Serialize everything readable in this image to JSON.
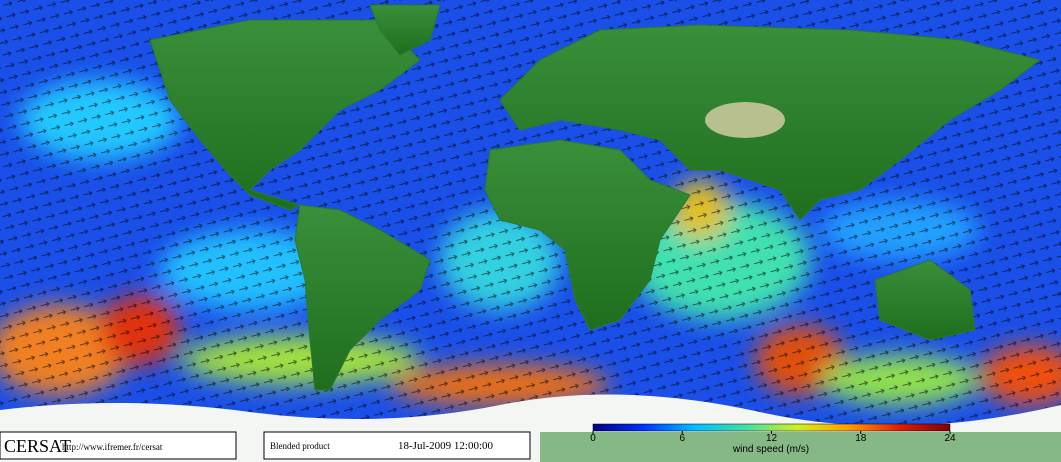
{
  "footer": {
    "logo": "CERSAT",
    "url": "http://www.ifremer.fr/cersat",
    "product": "Blended product",
    "datetime": "18-Jul-2009 12:00:00"
  },
  "colorbar": {
    "label": "wind speed (m/s)",
    "range": [
      0,
      24
    ],
    "ticks": [
      0,
      6,
      12,
      18,
      24
    ],
    "colors": [
      "#000080",
      "#0033ff",
      "#00bfff",
      "#40e0a0",
      "#d0f020",
      "#ffa000",
      "#e02000",
      "#800000"
    ]
  }
}
